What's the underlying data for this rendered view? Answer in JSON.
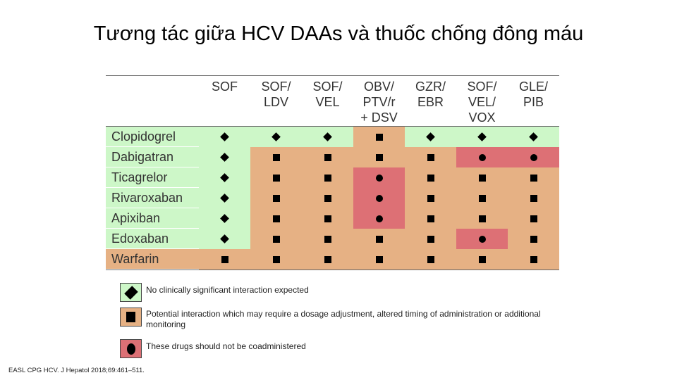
{
  "title": "Tương tác giữa HCV DAAs và thuốc chống đông máu",
  "columns": [
    "SOF",
    "SOF/\nLDV",
    "SOF/\nVEL",
    "OBV/\nPTV/r\n+ DSV",
    "GZR/\nEBR",
    "SOF/\nVEL/\nVOX",
    "GLE/\nPIB"
  ],
  "rows": [
    {
      "drug": "Clopidogrel",
      "cells": [
        "d",
        "d",
        "d",
        "s",
        "d",
        "d",
        "d"
      ],
      "colors": [
        "g",
        "g",
        "g",
        "o",
        "g",
        "g",
        "g"
      ]
    },
    {
      "drug": "Dabigatran",
      "cells": [
        "d",
        "s",
        "s",
        "s",
        "s",
        "c",
        "c"
      ],
      "colors": [
        "g",
        "o",
        "o",
        "o",
        "o",
        "r",
        "r"
      ]
    },
    {
      "drug": "Ticagrelor",
      "cells": [
        "d",
        "s",
        "s",
        "c",
        "s",
        "s",
        "s"
      ],
      "colors": [
        "g",
        "o",
        "o",
        "r",
        "o",
        "o",
        "o"
      ]
    },
    {
      "drug": "Rivaroxaban",
      "cells": [
        "d",
        "s",
        "s",
        "c",
        "s",
        "s",
        "s"
      ],
      "colors": [
        "g",
        "o",
        "o",
        "r",
        "o",
        "o",
        "o"
      ]
    },
    {
      "drug": "Apixiban",
      "cells": [
        "d",
        "s",
        "s",
        "c",
        "s",
        "s",
        "s"
      ],
      "colors": [
        "g",
        "o",
        "o",
        "r",
        "o",
        "o",
        "o"
      ]
    },
    {
      "drug": "Edoxaban",
      "cells": [
        "d",
        "s",
        "s",
        "s",
        "s",
        "c",
        "s"
      ],
      "colors": [
        "g",
        "o",
        "o",
        "o",
        "o",
        "r",
        "o"
      ]
    },
    {
      "drug": "Warfarin",
      "cells": [
        "s",
        "s",
        "s",
        "s",
        "s",
        "s",
        "s"
      ],
      "colors": [
        "o",
        "o",
        "o",
        "o",
        "o",
        "o",
        "o"
      ]
    }
  ],
  "legend": {
    "no_interaction": "No clinically significant interaction expected",
    "potential_interaction": "Potential interaction which may require a dosage adjustment, altered timing of administration or additional monitoring",
    "not_coadminister": "These drugs should not be coadministered"
  },
  "colors": {
    "green": "#cdf7c8",
    "orange": "#e6b184",
    "red": "#dd7075"
  },
  "citation": "EASL CPG HCV. J Hepatol 2018;69:461–511."
}
